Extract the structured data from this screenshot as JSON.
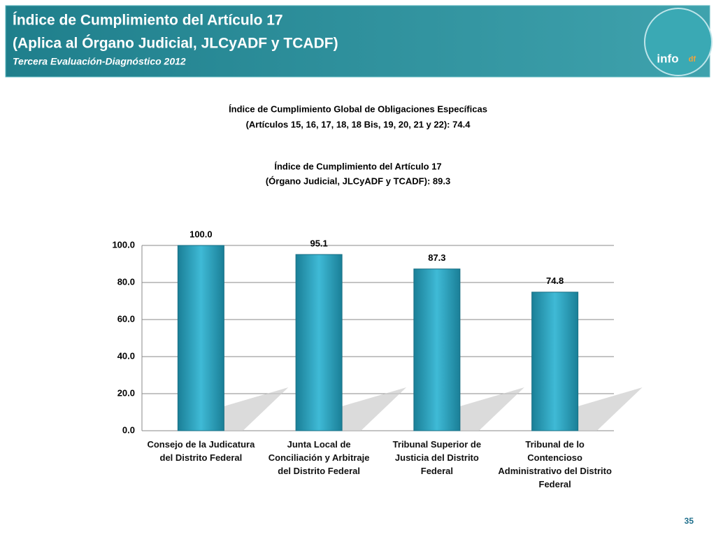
{
  "header": {
    "title": [
      "Índice de Cumplimiento del Artículo 17",
      "(Aplica al Órgano Judicial, JLCyADF y TCADF)"
    ],
    "subtitle": "Tercera Evaluación-Diagnóstico 2012",
    "logo": [
      "info",
      "df"
    ]
  },
  "page_number": "35",
  "chart_data": {
    "type": "bar",
    "title": [
      "Índice de Cumplimiento Global de Obligaciones Específicas",
      "(Artículos 15, 16, 17, 18, 18 Bis, 19, 20, 21 y 22): 74.4"
    ],
    "subtitle": [
      "Índice de Cumplimiento del Artículo 17",
      "(Órgano Judicial, JLCyADF y TCADF): 89.3"
    ],
    "categories": [
      "Consejo de la Judicatura del Distrito Federal",
      "Junta Local de Conciliación y Arbitraje del Distrito Federal",
      "Tribunal Superior de Justicia del Distrito Federal",
      "Tribunal de lo Contencioso Administrativo del Distrito Federal"
    ],
    "values": [
      100,
      95.1,
      87.3,
      74.8
    ],
    "value_labels": [
      "100.0",
      "95.1",
      "87.3",
      "74.8"
    ],
    "color": "#2a9fba",
    "ylim": [
      0,
      100
    ],
    "yticks": [
      {
        "value": 0,
        "label": "0.0"
      },
      {
        "value": 20,
        "label": "20.0"
      },
      {
        "value": 40,
        "label": "40.0"
      },
      {
        "value": 60,
        "label": "60.0"
      },
      {
        "value": 80,
        "label": "80.0"
      },
      {
        "value": 100,
        "label": "100.0"
      }
    ],
    "grid": true
  }
}
